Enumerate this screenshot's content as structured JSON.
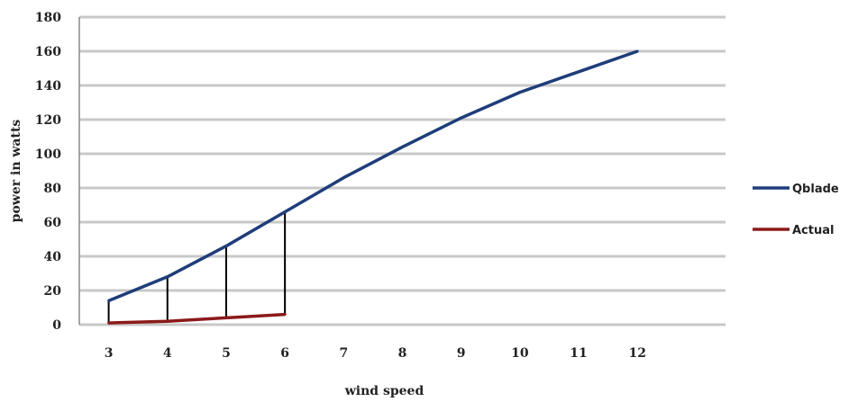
{
  "chart_data": {
    "type": "line",
    "x": [
      3,
      4,
      5,
      6,
      7,
      8,
      9,
      10,
      11,
      12
    ],
    "series": [
      {
        "name": "Qblade",
        "x": [
          3,
          4,
          5,
          6,
          7,
          8,
          9,
          10,
          11,
          12
        ],
        "values": [
          14,
          28,
          46,
          66,
          86,
          104,
          121,
          136,
          148,
          160
        ],
        "color": "#1f3d7a"
      },
      {
        "name": "Actual",
        "x": [
          3,
          4,
          5,
          6
        ],
        "values": [
          1,
          2,
          4,
          6
        ],
        "color": "#8b1a1a"
      }
    ],
    "xlabel": "wind speed",
    "ylabel": "power in watts",
    "ylim": [
      0,
      180
    ],
    "yticks": [
      0,
      20,
      40,
      60,
      80,
      100,
      120,
      140,
      160,
      180
    ],
    "xticks": [
      3,
      4,
      5,
      6,
      7,
      8,
      9,
      10,
      11,
      12
    ],
    "xlim": [
      2.5,
      13.5
    ],
    "grid": true,
    "grid_color": "#c8c8c8",
    "legend_position": "right",
    "drop_lines_at": [
      3,
      4,
      5,
      6
    ],
    "drop_line_color": "#000000"
  }
}
